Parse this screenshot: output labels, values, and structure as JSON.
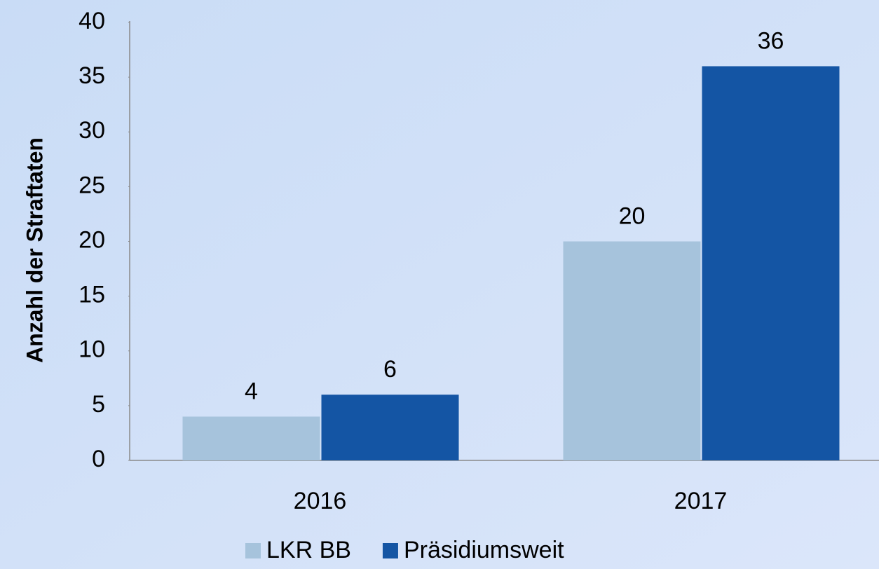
{
  "chart_data": {
    "type": "bar",
    "y_label": "Anzahl der Straftaten",
    "categories": [
      "2016",
      "2017"
    ],
    "series": [
      {
        "name": "LKR BB",
        "color": "#a6c3dc",
        "values": [
          4,
          20
        ]
      },
      {
        "name": "Präsidiumsweit",
        "color": "#1455a4",
        "values": [
          6,
          36
        ]
      }
    ],
    "ylim": [
      0,
      40
    ],
    "yticks": [
      0,
      5,
      10,
      15,
      20,
      25,
      30,
      35,
      40
    ],
    "legend": "bottom"
  }
}
